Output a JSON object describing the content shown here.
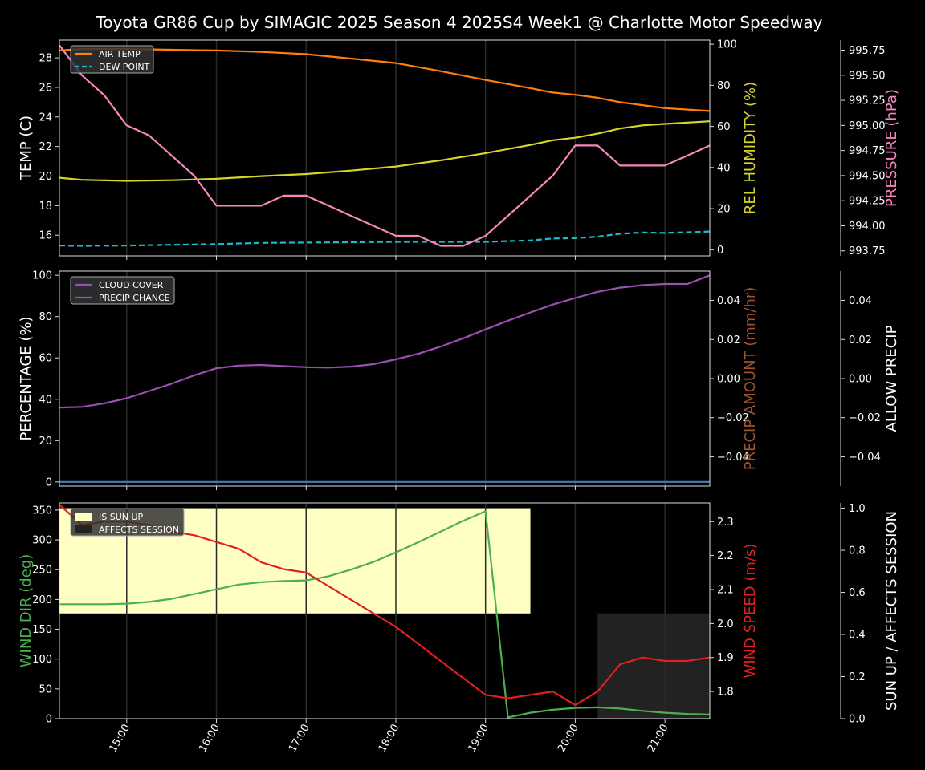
{
  "title": "Toyota GR86 Cup by SIMAGIC 2025 Season 4 2025S4 Week1 @ Charlotte Motor Speedway",
  "colors": {
    "background": "#000000",
    "text": "#ffffff",
    "air_temp": "#ff7f0e",
    "dew_point": "#17becf",
    "humidity": "#d4d42a",
    "pressure": "#f587bb",
    "cloud": "#9b4fb0",
    "precip_chance": "#3f7fbf",
    "precip_amount_label": "#a0522d",
    "wind_dir": "#4caf50",
    "wind_speed": "#e02020",
    "sun_up": "#ffffc4",
    "affects_session": "#222222"
  },
  "chart_data": [
    {
      "type": "line",
      "x_ticks": [
        "15:00",
        "16:00",
        "17:00",
        "18:00",
        "19:00",
        "20:00",
        "21:00"
      ],
      "x_range": [
        "14:15",
        "21:30"
      ],
      "ylabel_left": "TEMP (C)",
      "ylabel_right": "REL HUMIDITY (%)",
      "ylabel_far_right": "PRESSURE (hPa)",
      "yticks_left": [
        "16",
        "18",
        "20",
        "22",
        "24",
        "26",
        "28"
      ],
      "yticks_right": [
        "0",
        "20",
        "40",
        "60",
        "80",
        "100"
      ],
      "yticks_far_right": [
        "993.75",
        "994.00",
        "994.25",
        "994.50",
        "994.75",
        "995.00",
        "995.25",
        "995.50",
        "995.75"
      ],
      "ylim_left": [
        14.6,
        29.2
      ],
      "ylim_right": [
        -3,
        102
      ],
      "ylim_far_right": [
        993.7,
        995.85
      ],
      "legend": [
        "AIR TEMP",
        "DEW POINT"
      ],
      "legend_position": "top-left",
      "series": [
        {
          "name": "AIR TEMP",
          "axis": "left",
          "x": [
            "14:15",
            "14:30",
            "15:00",
            "15:30",
            "16:00",
            "16:30",
            "17:00",
            "17:30",
            "18:00",
            "18:30",
            "19:00",
            "19:30",
            "19:45",
            "20:00",
            "20:15",
            "20:30",
            "20:45",
            "21:00",
            "21:30"
          ],
          "values": [
            28.5,
            28.6,
            28.6,
            28.55,
            28.5,
            28.4,
            28.25,
            27.95,
            27.65,
            27.1,
            26.5,
            25.95,
            25.65,
            25.5,
            25.3,
            25.0,
            24.8,
            24.6,
            24.4
          ]
        },
        {
          "name": "DEW POINT",
          "axis": "left",
          "style": "dashed",
          "x": [
            "14:15",
            "14:30",
            "15:00",
            "15:30",
            "16:00",
            "16:30",
            "17:00",
            "17:30",
            "18:00",
            "18:30",
            "19:00",
            "19:30",
            "19:45",
            "20:00",
            "20:15",
            "20:30",
            "20:45",
            "21:00",
            "21:30"
          ],
          "values": [
            15.3,
            15.28,
            15.3,
            15.35,
            15.4,
            15.48,
            15.5,
            15.52,
            15.55,
            15.55,
            15.55,
            15.65,
            15.78,
            15.8,
            15.9,
            16.1,
            16.18,
            16.15,
            16.25
          ]
        },
        {
          "name": "REL HUMIDITY",
          "axis": "right",
          "x": [
            "14:15",
            "14:30",
            "15:00",
            "15:30",
            "16:00",
            "16:30",
            "17:00",
            "17:30",
            "18:00",
            "18:30",
            "19:00",
            "19:30",
            "19:45",
            "20:00",
            "20:15",
            "20:30",
            "20:45",
            "21:00",
            "21:30"
          ],
          "values": [
            35,
            34,
            33.5,
            33.8,
            34.5,
            35.8,
            36.8,
            38.5,
            40.5,
            43.5,
            47,
            51,
            53.3,
            54.5,
            56.5,
            59,
            60.5,
            61.2,
            62.5
          ]
        },
        {
          "name": "PRESSURE",
          "axis": "far_right",
          "x": [
            "14:15",
            "14:30",
            "14:45",
            "15:00",
            "15:15",
            "15:30",
            "15:45",
            "16:00",
            "16:15",
            "16:30",
            "16:45",
            "17:00",
            "17:15",
            "17:30",
            "17:45",
            "18:00",
            "18:15",
            "18:30",
            "18:45",
            "19:00",
            "19:15",
            "19:30",
            "19:45",
            "20:00",
            "20:15",
            "20:30",
            "20:45",
            "21:00",
            "21:15",
            "21:30"
          ],
          "values": [
            995.8,
            995.5,
            995.3,
            995.0,
            994.9,
            994.7,
            994.5,
            994.2,
            994.2,
            994.2,
            994.3,
            994.3,
            994.2,
            994.1,
            994.0,
            993.9,
            993.9,
            993.8,
            993.8,
            993.9,
            994.1,
            994.3,
            994.5,
            994.8,
            994.8,
            994.6,
            994.6,
            994.6,
            994.7,
            994.8
          ]
        }
      ]
    },
    {
      "type": "line",
      "x_ticks": [
        "15:00",
        "16:00",
        "17:00",
        "18:00",
        "19:00",
        "20:00",
        "21:00"
      ],
      "ylabel_left": "PERCENTAGE (%)",
      "ylabel_right": "PRECIP AMOUNT (mm/hr)",
      "ylabel_far_right": "ALLOW PRECIP",
      "yticks_left": [
        "0",
        "20",
        "40",
        "60",
        "80",
        "100"
      ],
      "yticks_right": [
        "−0.04",
        "−0.02",
        "0.00",
        "0.02",
        "0.04"
      ],
      "yticks_far_right": [
        "−0.04",
        "−0.02",
        "0.00",
        "0.02",
        "0.04"
      ],
      "ylim_left": [
        -2,
        102
      ],
      "ylim_right": [
        -0.055,
        0.055
      ],
      "legend": [
        "CLOUD COVER",
        "PRECIP CHANCE"
      ],
      "legend_position": "top-left",
      "series": [
        {
          "name": "CLOUD COVER",
          "axis": "left",
          "x": [
            "14:15",
            "14:30",
            "14:45",
            "15:00",
            "15:15",
            "15:30",
            "15:45",
            "16:00",
            "16:15",
            "16:30",
            "16:45",
            "17:00",
            "17:15",
            "17:30",
            "17:45",
            "18:00",
            "18:15",
            "18:30",
            "18:45",
            "19:00",
            "19:15",
            "19:30",
            "19:45",
            "20:00",
            "20:15",
            "20:30",
            "20:45",
            "21:00",
            "21:15",
            "21:30"
          ],
          "values": [
            36,
            36.3,
            38,
            40.5,
            44,
            47.5,
            51.5,
            55,
            56.3,
            56.6,
            56,
            55.5,
            55.3,
            55.8,
            57,
            59.3,
            62,
            65.5,
            69.5,
            73.8,
            78,
            82,
            85.8,
            89,
            92,
            94,
            95.2,
            95.8,
            95.8,
            100
          ]
        },
        {
          "name": "PRECIP CHANCE",
          "axis": "left",
          "x": [
            "14:15",
            "21:30"
          ],
          "values": [
            0,
            0
          ]
        }
      ]
    },
    {
      "type": "line",
      "x_ticks": [
        "15:00",
        "16:00",
        "17:00",
        "18:00",
        "19:00",
        "20:00",
        "21:00"
      ],
      "ylabel_left": "WIND DIR (deg)",
      "ylabel_right": "WIND SPEED (m/s)",
      "ylabel_far_right": "SUN UP / AFFECTS SESSION",
      "yticks_left": [
        "0",
        "50",
        "100",
        "150",
        "200",
        "250",
        "300",
        "350"
      ],
      "yticks_right": [
        "1.8",
        "1.9",
        "2.0",
        "2.1",
        "2.2",
        "2.3"
      ],
      "yticks_far_right": [
        "0.0",
        "0.2",
        "0.4",
        "0.6",
        "0.8",
        "1.0"
      ],
      "ylim_left": [
        0,
        362
      ],
      "ylim_right": [
        1.72,
        2.355
      ],
      "ylim_far_right": [
        0,
        1.025
      ],
      "legend": [
        "IS SUN UP",
        "AFFECTS SESSION"
      ],
      "legend_position": "top-left",
      "spans": [
        {
          "name": "IS SUN UP",
          "from": "14:15",
          "to": "19:30",
          "level": 0.5,
          "top": 1.0
        },
        {
          "name": "AFFECTS SESSION",
          "from": "20:15",
          "to": "21:30",
          "level": 0.0,
          "top": 0.5
        }
      ],
      "series": [
        {
          "name": "WIND DIR",
          "axis": "left",
          "x": [
            "14:15",
            "14:30",
            "14:45",
            "15:00",
            "15:15",
            "15:30",
            "15:45",
            "16:00",
            "16:15",
            "16:30",
            "16:45",
            "17:00",
            "17:15",
            "17:30",
            "17:45",
            "18:00",
            "18:15",
            "18:30",
            "18:45",
            "19:00",
            "19:15",
            "19:30",
            "19:45",
            "20:00",
            "20:15",
            "20:30",
            "20:45",
            "21:00",
            "21:15",
            "21:30"
          ],
          "values": [
            192,
            192,
            192,
            193,
            196,
            201,
            209,
            217,
            225,
            229,
            231,
            232,
            239,
            250,
            263,
            279,
            296,
            314,
            332,
            348,
            2,
            10,
            15,
            18,
            19,
            17,
            13,
            10,
            8,
            7
          ]
        },
        {
          "name": "WIND SPEED",
          "axis": "right",
          "x": [
            "14:15",
            "14:30",
            "14:45",
            "15:00",
            "15:15",
            "15:30",
            "15:45",
            "16:00",
            "16:15",
            "16:30",
            "16:45",
            "17:00",
            "17:15",
            "17:30",
            "17:45",
            "18:00",
            "18:15",
            "18:30",
            "18:45",
            "19:00",
            "19:15",
            "19:30",
            "19:45",
            "20:00",
            "20:15",
            "20:30",
            "20:45",
            "21:00",
            "21:15",
            "21:30"
          ],
          "values": [
            2.35,
            2.29,
            2.3,
            2.3,
            2.29,
            2.27,
            2.26,
            2.24,
            2.22,
            2.18,
            2.16,
            2.15,
            2.11,
            2.07,
            2.03,
            1.99,
            1.94,
            1.89,
            1.84,
            1.79,
            1.78,
            1.79,
            1.8,
            1.76,
            1.8,
            1.88,
            1.9,
            1.89,
            1.89,
            1.9
          ]
        }
      ]
    }
  ]
}
